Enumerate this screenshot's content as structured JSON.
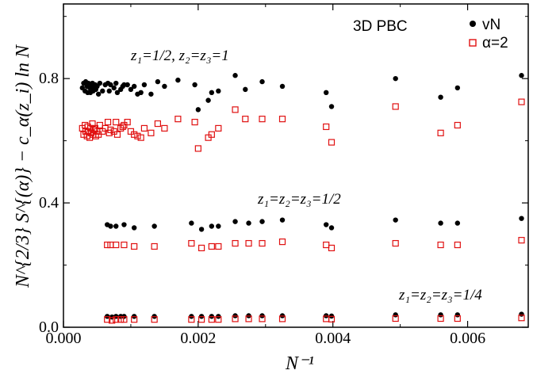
{
  "chart_data": {
    "type": "scatter",
    "title": "3D PBC",
    "xlabel": "N⁻¹",
    "ylabel": "N^{2/3} S^{(α)} − c_α(z_i) ln N",
    "xlim": [
      0.0,
      0.0069
    ],
    "ylim": [
      0.0,
      1.04
    ],
    "grid": false,
    "legend_position": "top-right",
    "x_ticks": [
      {
        "value": 0.0,
        "label": "0.000"
      },
      {
        "value": 0.002,
        "label": "0.002"
      },
      {
        "value": 0.004,
        "label": "0.004"
      },
      {
        "value": 0.006,
        "label": "0.006"
      }
    ],
    "y_ticks": [
      {
        "value": 0.0,
        "label": "0.0"
      },
      {
        "value": 0.4,
        "label": "0.4"
      },
      {
        "value": 0.8,
        "label": "0.8"
      }
    ],
    "annotations": [
      {
        "text": "z₁=1/2,  z₂=z₃=1",
        "x": 0.0015,
        "y": 0.895
      },
      {
        "text": "z₁=z₂=z₃=1/2",
        "x": 0.00315,
        "y": 0.415
      },
      {
        "text": "z₁=z₂=z₃=1/4",
        "x": 0.0054,
        "y": 0.1
      }
    ],
    "series": [
      {
        "name": "vN",
        "marker": "filled-circle",
        "color": "#000000",
        "points": [
          [
            0.00028,
            0.77
          ],
          [
            0.0003,
            0.785
          ],
          [
            0.00032,
            0.76
          ],
          [
            0.00033,
            0.79
          ],
          [
            0.00035,
            0.775
          ],
          [
            0.00036,
            0.755
          ],
          [
            0.00037,
            0.785
          ],
          [
            0.00039,
            0.77
          ],
          [
            0.0004,
            0.755
          ],
          [
            0.00041,
            0.775
          ],
          [
            0.00043,
            0.785
          ],
          [
            0.00044,
            0.76
          ],
          [
            0.00045,
            0.77
          ],
          [
            0.00047,
            0.78
          ],
          [
            0.00048,
            0.765
          ],
          [
            0.0005,
            0.775
          ],
          [
            0.00052,
            0.75
          ],
          [
            0.00054,
            0.785
          ],
          [
            0.00058,
            0.76
          ],
          [
            0.00062,
            0.78
          ],
          [
            0.00066,
            0.785
          ],
          [
            0.00068,
            0.76
          ],
          [
            0.0007,
            0.78
          ],
          [
            0.00075,
            0.77
          ],
          [
            0.00078,
            0.785
          ],
          [
            0.0008,
            0.755
          ],
          [
            0.00085,
            0.765
          ],
          [
            0.00088,
            0.775
          ],
          [
            0.0009,
            0.78
          ],
          [
            0.00095,
            0.78
          ],
          [
            0.001,
            0.765
          ],
          [
            0.00105,
            0.775
          ],
          [
            0.0011,
            0.75
          ],
          [
            0.00115,
            0.755
          ],
          [
            0.0012,
            0.78
          ],
          [
            0.0013,
            0.75
          ],
          [
            0.0014,
            0.79
          ],
          [
            0.0015,
            0.775
          ],
          [
            0.0017,
            0.795
          ],
          [
            0.00195,
            0.78
          ],
          [
            0.002,
            0.7
          ],
          [
            0.00215,
            0.73
          ],
          [
            0.0022,
            0.755
          ],
          [
            0.0023,
            0.76
          ],
          [
            0.00255,
            0.81
          ],
          [
            0.0027,
            0.765
          ],
          [
            0.00295,
            0.79
          ],
          [
            0.00325,
            0.775
          ],
          [
            0.0039,
            0.755
          ],
          [
            0.00398,
            0.71
          ],
          [
            0.00493,
            0.8
          ],
          [
            0.0056,
            0.74
          ],
          [
            0.00585,
            0.77
          ],
          [
            0.0068,
            0.81
          ],
          [
            0.00065,
            0.33
          ],
          [
            0.0007,
            0.325
          ],
          [
            0.00078,
            0.325
          ],
          [
            0.0009,
            0.33
          ],
          [
            0.00105,
            0.32
          ],
          [
            0.00135,
            0.325
          ],
          [
            0.0019,
            0.335
          ],
          [
            0.00205,
            0.315
          ],
          [
            0.0022,
            0.325
          ],
          [
            0.0023,
            0.325
          ],
          [
            0.00255,
            0.34
          ],
          [
            0.00275,
            0.335
          ],
          [
            0.00295,
            0.34
          ],
          [
            0.00325,
            0.345
          ],
          [
            0.0039,
            0.33
          ],
          [
            0.00398,
            0.32
          ],
          [
            0.00493,
            0.345
          ],
          [
            0.0056,
            0.335
          ],
          [
            0.00585,
            0.335
          ],
          [
            0.0068,
            0.35
          ],
          [
            0.00065,
            0.035
          ],
          [
            0.00072,
            0.033
          ],
          [
            0.00078,
            0.035
          ],
          [
            0.00085,
            0.035
          ],
          [
            0.0009,
            0.035
          ],
          [
            0.00105,
            0.035
          ],
          [
            0.00135,
            0.035
          ],
          [
            0.0019,
            0.035
          ],
          [
            0.00205,
            0.035
          ],
          [
            0.0022,
            0.035
          ],
          [
            0.0023,
            0.035
          ],
          [
            0.00255,
            0.037
          ],
          [
            0.00275,
            0.037
          ],
          [
            0.00295,
            0.037
          ],
          [
            0.00325,
            0.037
          ],
          [
            0.0039,
            0.037
          ],
          [
            0.00398,
            0.036
          ],
          [
            0.00493,
            0.04
          ],
          [
            0.0056,
            0.04
          ],
          [
            0.00585,
            0.04
          ],
          [
            0.0068,
            0.042
          ]
        ]
      },
      {
        "name": "α=2",
        "marker": "open-square",
        "color": "#e01010",
        "points": [
          [
            0.00028,
            0.64
          ],
          [
            0.0003,
            0.62
          ],
          [
            0.00032,
            0.65
          ],
          [
            0.00033,
            0.63
          ],
          [
            0.00035,
            0.615
          ],
          [
            0.00036,
            0.645
          ],
          [
            0.00037,
            0.63
          ],
          [
            0.00039,
            0.61
          ],
          [
            0.0004,
            0.64
          ],
          [
            0.00041,
            0.625
          ],
          [
            0.00043,
            0.655
          ],
          [
            0.00044,
            0.62
          ],
          [
            0.00045,
            0.635
          ],
          [
            0.00047,
            0.64
          ],
          [
            0.00048,
            0.615
          ],
          [
            0.0005,
            0.63
          ],
          [
            0.00052,
            0.62
          ],
          [
            0.00054,
            0.65
          ],
          [
            0.00058,
            0.63
          ],
          [
            0.00062,
            0.64
          ],
          [
            0.00066,
            0.66
          ],
          [
            0.00068,
            0.625
          ],
          [
            0.0007,
            0.635
          ],
          [
            0.00075,
            0.63
          ],
          [
            0.00078,
            0.66
          ],
          [
            0.0008,
            0.62
          ],
          [
            0.00085,
            0.64
          ],
          [
            0.00088,
            0.645
          ],
          [
            0.0009,
            0.65
          ],
          [
            0.00095,
            0.66
          ],
          [
            0.001,
            0.63
          ],
          [
            0.00105,
            0.62
          ],
          [
            0.0011,
            0.615
          ],
          [
            0.00115,
            0.61
          ],
          [
            0.0012,
            0.64
          ],
          [
            0.0013,
            0.625
          ],
          [
            0.0014,
            0.655
          ],
          [
            0.0015,
            0.64
          ],
          [
            0.0017,
            0.67
          ],
          [
            0.00195,
            0.66
          ],
          [
            0.002,
            0.575
          ],
          [
            0.00215,
            0.61
          ],
          [
            0.0022,
            0.62
          ],
          [
            0.0023,
            0.64
          ],
          [
            0.00255,
            0.7
          ],
          [
            0.0027,
            0.67
          ],
          [
            0.00295,
            0.67
          ],
          [
            0.00325,
            0.67
          ],
          [
            0.0039,
            0.645
          ],
          [
            0.00398,
            0.595
          ],
          [
            0.00493,
            0.71
          ],
          [
            0.0056,
            0.625
          ],
          [
            0.00585,
            0.65
          ],
          [
            0.0068,
            0.725
          ],
          [
            0.00065,
            0.265
          ],
          [
            0.0007,
            0.265
          ],
          [
            0.00078,
            0.265
          ],
          [
            0.0009,
            0.265
          ],
          [
            0.00105,
            0.26
          ],
          [
            0.00135,
            0.26
          ],
          [
            0.0019,
            0.27
          ],
          [
            0.00205,
            0.255
          ],
          [
            0.0022,
            0.26
          ],
          [
            0.0023,
            0.26
          ],
          [
            0.00255,
            0.27
          ],
          [
            0.00275,
            0.27
          ],
          [
            0.00295,
            0.27
          ],
          [
            0.00325,
            0.275
          ],
          [
            0.0039,
            0.265
          ],
          [
            0.00398,
            0.255
          ],
          [
            0.00493,
            0.27
          ],
          [
            0.0056,
            0.265
          ],
          [
            0.00585,
            0.265
          ],
          [
            0.0068,
            0.28
          ],
          [
            0.00065,
            0.025
          ],
          [
            0.00072,
            0.022
          ],
          [
            0.00078,
            0.025
          ],
          [
            0.00085,
            0.025
          ],
          [
            0.0009,
            0.025
          ],
          [
            0.00105,
            0.025
          ],
          [
            0.00135,
            0.025
          ],
          [
            0.0019,
            0.025
          ],
          [
            0.00205,
            0.025
          ],
          [
            0.0022,
            0.025
          ],
          [
            0.0023,
            0.025
          ],
          [
            0.00255,
            0.027
          ],
          [
            0.00275,
            0.027
          ],
          [
            0.00295,
            0.027
          ],
          [
            0.00325,
            0.027
          ],
          [
            0.0039,
            0.027
          ],
          [
            0.00398,
            0.026
          ],
          [
            0.00493,
            0.028
          ],
          [
            0.0056,
            0.028
          ],
          [
            0.00585,
            0.028
          ],
          [
            0.0068,
            0.03
          ]
        ]
      }
    ]
  }
}
